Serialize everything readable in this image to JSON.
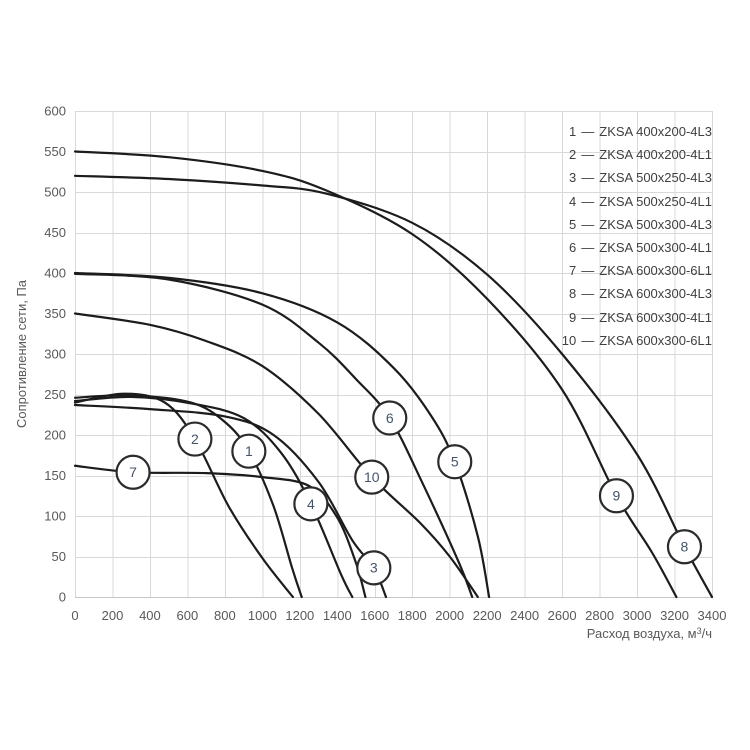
{
  "chart": {
    "y_axis_title": "Сопротивление сети, Па",
    "x_axis_title_base": "Расход воздуха, м",
    "x_axis_title_sup": "3",
    "x_axis_title_tail": "/ч",
    "legend_separator": "—",
    "colors": {
      "grid": "#d9d9d9",
      "axis_line": "#c6c6c6",
      "tick_text": "#595959",
      "legend_text": "#3f3f3f",
      "curve": "#1c1c1c",
      "marker_stroke": "#2b2b2b",
      "marker_fill": "#ffffff",
      "marker_text": "#44546a"
    }
  },
  "chart_data": {
    "type": "line",
    "title": "",
    "xlabel": "Расход воздуха, м³/ч",
    "ylabel": "Сопротивление сети, Па",
    "xlim": [
      0,
      3400
    ],
    "ylim": [
      0,
      600
    ],
    "x_tick_step": 200,
    "y_tick_step": 50,
    "grid": true,
    "legend_position": "inside top-right",
    "series": [
      {
        "num": "1",
        "name": "ZKSA 400x200-4L3",
        "points": [
          [
            0,
            246
          ],
          [
            300,
            249
          ],
          [
            620,
            240
          ],
          [
            800,
            216
          ],
          [
            928,
            180
          ],
          [
            1060,
            112
          ],
          [
            1160,
            35
          ],
          [
            1210,
            0
          ]
        ],
        "marker_at": [
          928,
          180
        ]
      },
      {
        "num": "2",
        "name": "ZKSA 400x200-4L1",
        "points": [
          [
            0,
            240
          ],
          [
            260,
            251
          ],
          [
            480,
            240
          ],
          [
            640,
            195
          ],
          [
            820,
            112
          ],
          [
            1000,
            48
          ],
          [
            1163,
            0
          ]
        ],
        "marker_at": [
          640,
          195
        ]
      },
      {
        "num": "3",
        "name": "ZKSA 500x250-4L3",
        "points": [
          [
            0,
            237
          ],
          [
            400,
            232
          ],
          [
            800,
            223
          ],
          [
            1060,
            200
          ],
          [
            1300,
            142
          ],
          [
            1480,
            70
          ],
          [
            1595,
            36
          ],
          [
            1660,
            0
          ]
        ],
        "marker_at": [
          1595,
          36
        ]
      },
      {
        "num": "4",
        "name": "ZKSA 500x250-4L1",
        "points": [
          [
            0,
            242
          ],
          [
            300,
            247
          ],
          [
            620,
            239
          ],
          [
            900,
            221
          ],
          [
            1100,
            178
          ],
          [
            1259,
            115
          ],
          [
            1420,
            28
          ],
          [
            1480,
            0
          ]
        ],
        "marker_at": [
          1259,
          115
        ]
      },
      {
        "num": "5",
        "name": "ZKSA 500x300-4L3",
        "points": [
          [
            0,
            400
          ],
          [
            500,
            394
          ],
          [
            1000,
            375
          ],
          [
            1400,
            339
          ],
          [
            1700,
            283
          ],
          [
            1900,
            224
          ],
          [
            2027,
            167
          ],
          [
            2150,
            75
          ],
          [
            2210,
            0
          ]
        ],
        "marker_at": [
          2027,
          167
        ]
      },
      {
        "num": "6",
        "name": "ZKSA 500x300-4L1",
        "points": [
          [
            0,
            399
          ],
          [
            500,
            392
          ],
          [
            1000,
            361
          ],
          [
            1300,
            314
          ],
          [
            1500,
            269
          ],
          [
            1680,
            221
          ],
          [
            1860,
            138
          ],
          [
            2050,
            42
          ],
          [
            2120,
            0
          ]
        ],
        "marker_at": [
          1680,
          221
        ]
      },
      {
        "num": "7",
        "name": "ZKSA 600x300-6L1",
        "points": [
          [
            0,
            162
          ],
          [
            310,
            154
          ],
          [
            700,
            153
          ],
          [
            1000,
            148
          ],
          [
            1250,
            137
          ],
          [
            1400,
            98
          ],
          [
            1500,
            42
          ],
          [
            1550,
            0
          ]
        ],
        "marker_at": [
          310,
          154
        ]
      },
      {
        "num": "8",
        "name": "ZKSA 600x300-4L3",
        "points": [
          [
            0,
            520
          ],
          [
            500,
            516
          ],
          [
            1000,
            508
          ],
          [
            1340,
            498
          ],
          [
            1800,
            462
          ],
          [
            2200,
            398
          ],
          [
            2600,
            300
          ],
          [
            3000,
            176
          ],
          [
            3253,
            62
          ],
          [
            3400,
            0
          ]
        ],
        "marker_at": [
          3253,
          62
        ]
      },
      {
        "num": "9",
        "name": "ZKSA 600x300-4L1",
        "points": [
          [
            0,
            550
          ],
          [
            500,
            543
          ],
          [
            1000,
            526
          ],
          [
            1340,
            502
          ],
          [
            1800,
            448
          ],
          [
            2200,
            368
          ],
          [
            2600,
            256
          ],
          [
            2890,
            125
          ],
          [
            3080,
            55
          ],
          [
            3210,
            0
          ]
        ],
        "marker_at": [
          2890,
          125
        ]
      },
      {
        "num": "10",
        "name": "ZKSA 600x300-6L1",
        "points": [
          [
            0,
            350
          ],
          [
            400,
            336
          ],
          [
            700,
            316
          ],
          [
            1000,
            285
          ],
          [
            1300,
            226
          ],
          [
            1584,
            148
          ],
          [
            1840,
            92
          ],
          [
            2000,
            50
          ],
          [
            2150,
            0
          ]
        ],
        "marker_at": [
          1584,
          148
        ]
      }
    ]
  }
}
